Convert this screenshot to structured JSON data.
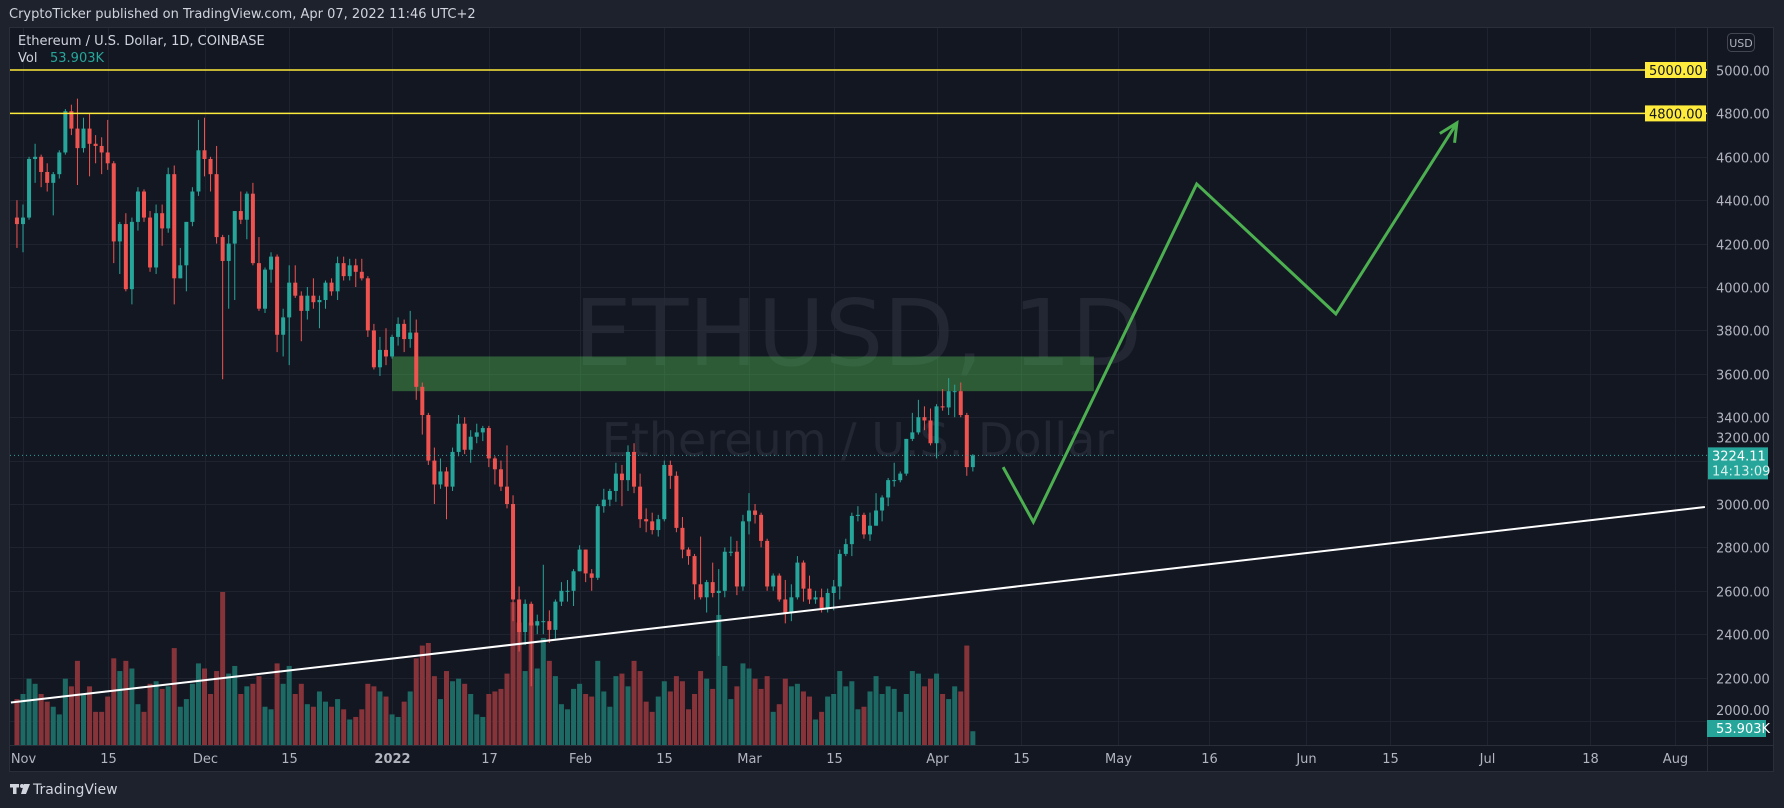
{
  "header": {
    "published": "CryptoTicker published on TradingView.com, Apr 07, 2022 11:46 UTC+2"
  },
  "legend": {
    "symbol": "Ethereum / U.S. Dollar, 1D, COINBASE",
    "vol_label": "Vol",
    "vol_value": "53.903K"
  },
  "watermark": {
    "ticker": "ETHUSD, 1D",
    "name": "Ethereum / U.S. Dollar"
  },
  "currency_button": "USD",
  "footer": {
    "brand": "TradingView"
  },
  "colors": {
    "up": "#26a69a",
    "down": "#ef5350",
    "vol_up": "#1d6a65",
    "vol_down": "#86343a",
    "level": "#ffeb3b",
    "zone": "#4caf50",
    "path": "#4caf50",
    "trend": "#ffffff"
  },
  "chart_data": {
    "type": "candlestick",
    "title": "Ethereum / U.S. Dollar, 1D, COINBASE",
    "ylim": [
      1980,
      5100
    ],
    "y_ticks": [
      5000,
      4800,
      4600,
      4400,
      4200,
      4000,
      3800,
      3600,
      3400,
      3200,
      3000,
      2800,
      2600,
      2400,
      2200,
      2000
    ],
    "y_tick_labels": [
      "5000.00",
      "4800.00",
      "4600.00",
      "4400.00",
      "4200.00",
      "4000.00",
      "3800.00",
      "3600.00",
      "3400.00",
      "3200.00",
      "3000.00",
      "2800.00",
      "2600.00",
      "2400.00",
      "2200.00",
      "2000.00"
    ],
    "x_ticks": [
      {
        "date": "2021-11-01",
        "label": "Nov"
      },
      {
        "date": "2021-11-15",
        "label": "15"
      },
      {
        "date": "2021-12-01",
        "label": "Dec"
      },
      {
        "date": "2021-12-15",
        "label": "15"
      },
      {
        "date": "2022-01-01",
        "label": "2022",
        "bold": true
      },
      {
        "date": "2022-01-17",
        "label": "17"
      },
      {
        "date": "2022-02-01",
        "label": "Feb"
      },
      {
        "date": "2022-02-15",
        "label": "15"
      },
      {
        "date": "2022-03-01",
        "label": "Mar"
      },
      {
        "date": "2022-03-15",
        "label": "15"
      },
      {
        "date": "2022-04-01",
        "label": "Apr"
      },
      {
        "date": "2022-04-15",
        "label": "15"
      },
      {
        "date": "2022-05-01",
        "label": "May"
      },
      {
        "date": "2022-05-16",
        "label": "16"
      },
      {
        "date": "2022-06-01",
        "label": "Jun"
      },
      {
        "date": "2022-06-15",
        "label": "15"
      },
      {
        "date": "2022-07-01",
        "label": "Jul"
      },
      {
        "date": "2022-07-18",
        "label": "18"
      },
      {
        "date": "2022-08-01",
        "label": "Aug"
      }
    ],
    "first_date": "2021-10-31",
    "candle_fields": [
      "open",
      "high",
      "low",
      "close",
      "volume_k"
    ],
    "candles": [
      [
        4320,
        4400,
        4180,
        4290,
        180
      ],
      [
        4290,
        4380,
        4160,
        4320,
        200
      ],
      [
        4320,
        4600,
        4310,
        4590,
        260
      ],
      [
        4590,
        4660,
        4480,
        4600,
        240
      ],
      [
        4600,
        4610,
        4460,
        4530,
        200
      ],
      [
        4530,
        4570,
        4440,
        4480,
        170
      ],
      [
        4480,
        4530,
        4330,
        4520,
        150
      ],
      [
        4520,
        4630,
        4500,
        4620,
        120
      ],
      [
        4620,
        4820,
        4610,
        4810,
        260
      ],
      [
        4810,
        4840,
        4700,
        4730,
        230
      ],
      [
        4730,
        4868,
        4470,
        4640,
        330
      ],
      [
        4640,
        4780,
        4620,
        4730,
        200
      ],
      [
        4730,
        4800,
        4510,
        4660,
        230
      ],
      [
        4660,
        4700,
        4570,
        4650,
        130
      ],
      [
        4650,
        4690,
        4520,
        4620,
        130
      ],
      [
        4620,
        4770,
        4540,
        4570,
        190
      ],
      [
        4570,
        4580,
        4110,
        4210,
        340
      ],
      [
        4210,
        4300,
        4060,
        4290,
        290
      ],
      [
        4290,
        4340,
        3980,
        3990,
        330
      ],
      [
        3990,
        4320,
        3920,
        4300,
        300
      ],
      [
        4300,
        4460,
        4260,
        4440,
        160
      ],
      [
        4440,
        4450,
        4300,
        4320,
        130
      ],
      [
        4320,
        4350,
        4070,
        4090,
        240
      ],
      [
        4090,
        4380,
        4060,
        4340,
        250
      ],
      [
        4340,
        4380,
        4190,
        4270,
        220
      ],
      [
        4270,
        4550,
        4250,
        4520,
        230
      ],
      [
        4520,
        4560,
        3920,
        4040,
        380
      ],
      [
        4040,
        4180,
        4040,
        4100,
        150
      ],
      [
        4100,
        4300,
        3980,
        4300,
        180
      ],
      [
        4300,
        4460,
        4280,
        4440,
        240
      ],
      [
        4440,
        4770,
        4420,
        4630,
        320
      ],
      [
        4630,
        4780,
        4510,
        4590,
        300
      ],
      [
        4590,
        4600,
        4440,
        4520,
        200
      ],
      [
        4520,
        4650,
        4200,
        4230,
        290
      ],
      [
        4230,
        4240,
        3575,
        4120,
        600
      ],
      [
        4120,
        4240,
        3900,
        4200,
        280
      ],
      [
        4200,
        4350,
        3940,
        4350,
        310
      ],
      [
        4350,
        4440,
        4290,
        4310,
        200
      ],
      [
        4310,
        4440,
        4220,
        4430,
        230
      ],
      [
        4430,
        4480,
        4100,
        4110,
        240
      ],
      [
        4110,
        4230,
        3890,
        3900,
        270
      ],
      [
        3900,
        4090,
        3880,
        4080,
        150
      ],
      [
        4080,
        4160,
        4020,
        4140,
        140
      ],
      [
        4140,
        4150,
        3700,
        3780,
        320
      ],
      [
        3780,
        3900,
        3680,
        3860,
        240
      ],
      [
        3860,
        4100,
        3640,
        4020,
        310
      ],
      [
        4020,
        4100,
        3950,
        3960,
        200
      ],
      [
        3960,
        3980,
        3750,
        3890,
        240
      ],
      [
        3890,
        4000,
        3850,
        3960,
        160
      ],
      [
        3960,
        4040,
        3900,
        3930,
        150
      ],
      [
        3930,
        3960,
        3810,
        3940,
        210
      ],
      [
        3940,
        4030,
        3900,
        4020,
        170
      ],
      [
        4020,
        4040,
        3960,
        3980,
        150
      ],
      [
        3980,
        4140,
        3940,
        4110,
        180
      ],
      [
        4110,
        4140,
        4030,
        4050,
        140
      ],
      [
        4050,
        4130,
        4030,
        4100,
        100
      ],
      [
        4100,
        4130,
        4000,
        4070,
        110
      ],
      [
        4070,
        4130,
        4030,
        4040,
        140
      ],
      [
        4040,
        4050,
        3770,
        3800,
        240
      ],
      [
        3800,
        3830,
        3620,
        3630,
        230
      ],
      [
        3630,
        3770,
        3590,
        3710,
        210
      ],
      [
        3710,
        3810,
        3640,
        3680,
        190
      ],
      [
        3680,
        3780,
        3670,
        3770,
        120
      ],
      [
        3770,
        3860,
        3730,
        3830,
        110
      ],
      [
        3830,
        3850,
        3700,
        3760,
        170
      ],
      [
        3760,
        3890,
        3720,
        3790,
        210
      ],
      [
        3790,
        3850,
        3480,
        3540,
        340
      ],
      [
        3540,
        3560,
        3320,
        3410,
        390
      ],
      [
        3410,
        3420,
        3180,
        3200,
        400
      ],
      [
        3200,
        3260,
        3000,
        3090,
        270
      ],
      [
        3090,
        3210,
        3070,
        3150,
        180
      ],
      [
        3150,
        3170,
        2930,
        3080,
        290
      ],
      [
        3080,
        3260,
        3060,
        3240,
        250
      ],
      [
        3240,
        3410,
        3220,
        3370,
        260
      ],
      [
        3370,
        3400,
        3230,
        3250,
        240
      ],
      [
        3250,
        3340,
        3190,
        3310,
        200
      ],
      [
        3310,
        3370,
        3280,
        3330,
        120
      ],
      [
        3330,
        3360,
        3290,
        3350,
        110
      ],
      [
        3350,
        3360,
        3170,
        3210,
        200
      ],
      [
        3210,
        3220,
        3090,
        3160,
        210
      ],
      [
        3160,
        3200,
        3060,
        3080,
        220
      ],
      [
        3080,
        3270,
        2980,
        3000,
        280
      ],
      [
        3000,
        3040,
        2460,
        2560,
        560
      ],
      [
        2560,
        2620,
        2320,
        2410,
        480
      ],
      [
        2410,
        2560,
        2350,
        2540,
        290
      ],
      [
        2540,
        2550,
        2160,
        2440,
        480
      ],
      [
        2440,
        2490,
        2400,
        2460,
        300
      ],
      [
        2460,
        2720,
        2400,
        2460,
        420
      ],
      [
        2460,
        2510,
        2360,
        2420,
        330
      ],
      [
        2420,
        2560,
        2380,
        2550,
        270
      ],
      [
        2550,
        2640,
        2530,
        2600,
        160
      ],
      [
        2600,
        2650,
        2550,
        2600,
        140
      ],
      [
        2600,
        2700,
        2530,
        2690,
        220
      ],
      [
        2690,
        2810,
        2690,
        2790,
        240
      ],
      [
        2790,
        2790,
        2640,
        2680,
        200
      ],
      [
        2680,
        2700,
        2600,
        2660,
        190
      ],
      [
        2660,
        3000,
        2650,
        2990,
        330
      ],
      [
        2990,
        3070,
        2960,
        3020,
        210
      ],
      [
        3020,
        3070,
        2990,
        3060,
        150
      ],
      [
        3060,
        3190,
        3010,
        3140,
        270
      ],
      [
        3140,
        3180,
        2990,
        3110,
        280
      ],
      [
        3110,
        3270,
        3060,
        3240,
        230
      ],
      [
        3240,
        3280,
        3050,
        3080,
        330
      ],
      [
        3080,
        3140,
        2890,
        2930,
        290
      ],
      [
        2930,
        2980,
        2870,
        2920,
        170
      ],
      [
        2920,
        2960,
        2860,
        2880,
        130
      ],
      [
        2880,
        2950,
        2850,
        2930,
        190
      ],
      [
        2930,
        3200,
        2920,
        3180,
        250
      ],
      [
        3180,
        3200,
        3070,
        3130,
        210
      ],
      [
        3130,
        3150,
        2870,
        2890,
        270
      ],
      [
        2890,
        2940,
        2750,
        2790,
        250
      ],
      [
        2790,
        2800,
        2720,
        2760,
        140
      ],
      [
        2760,
        2770,
        2560,
        2630,
        200
      ],
      [
        2630,
        2850,
        2560,
        2570,
        290
      ],
      [
        2570,
        2650,
        2500,
        2640,
        260
      ],
      [
        2640,
        2730,
        2570,
        2590,
        220
      ],
      [
        2590,
        2700,
        2300,
        2600,
        510
      ],
      [
        2600,
        2800,
        2570,
        2780,
        310
      ],
      [
        2780,
        2850,
        2760,
        2780,
        180
      ],
      [
        2780,
        2830,
        2580,
        2620,
        230
      ],
      [
        2620,
        2950,
        2600,
        2920,
        320
      ],
      [
        2920,
        3050,
        2860,
        2970,
        300
      ],
      [
        2970,
        3000,
        2910,
        2950,
        260
      ],
      [
        2950,
        2960,
        2800,
        2830,
        220
      ],
      [
        2830,
        2840,
        2600,
        2620,
        270
      ],
      [
        2620,
        2680,
        2600,
        2670,
        130
      ],
      [
        2670,
        2680,
        2550,
        2560,
        160
      ],
      [
        2560,
        2650,
        2450,
        2500,
        260
      ],
      [
        2500,
        2630,
        2460,
        2570,
        230
      ],
      [
        2570,
        2760,
        2560,
        2730,
        240
      ],
      [
        2730,
        2740,
        2550,
        2610,
        210
      ],
      [
        2610,
        2670,
        2540,
        2560,
        190
      ],
      [
        2560,
        2600,
        2540,
        2570,
        100
      ],
      [
        2570,
        2610,
        2500,
        2520,
        130
      ],
      [
        2520,
        2610,
        2500,
        2590,
        190
      ],
      [
        2590,
        2650,
        2510,
        2620,
        200
      ],
      [
        2620,
        2790,
        2560,
        2770,
        290
      ],
      [
        2770,
        2840,
        2760,
        2815,
        230
      ],
      [
        2815,
        2960,
        2760,
        2945,
        250
      ],
      [
        2945,
        2990,
        2920,
        2950,
        140
      ],
      [
        2950,
        2960,
        2840,
        2860,
        150
      ],
      [
        2860,
        2960,
        2830,
        2900,
        210
      ],
      [
        2900,
        3050,
        2900,
        2970,
        270
      ],
      [
        2970,
        3040,
        2920,
        3030,
        200
      ],
      [
        3030,
        3120,
        2990,
        3110,
        230
      ],
      [
        3110,
        3190,
        3080,
        3110,
        220
      ],
      [
        3110,
        3150,
        3100,
        3140,
        130
      ],
      [
        3140,
        3300,
        3130,
        3300,
        200
      ],
      [
        3300,
        3420,
        3290,
        3330,
        290
      ],
      [
        3330,
        3480,
        3320,
        3400,
        280
      ],
      [
        3400,
        3450,
        3340,
        3385,
        230
      ],
      [
        3385,
        3440,
        3270,
        3280,
        260
      ],
      [
        3280,
        3460,
        3210,
        3450,
        280
      ],
      [
        3450,
        3530,
        3430,
        3445,
        200
      ],
      [
        3445,
        3580,
        3410,
        3520,
        180
      ],
      [
        3520,
        3550,
        3400,
        3520,
        230
      ],
      [
        3520,
        3560,
        3400,
        3410,
        210
      ],
      [
        3410,
        3420,
        3130,
        3170,
        390
      ],
      [
        3170,
        3230,
        3150,
        3224,
        54
      ]
    ],
    "last_price": 3224.11,
    "last_price_label": "3224.11",
    "countdown": "14:13:09",
    "volume_label": "53.903K",
    "horizontal_levels": [
      {
        "price": 5000,
        "label": "5000.00"
      },
      {
        "price": 4800,
        "label": "4800.00"
      }
    ],
    "zone": {
      "from": "2022-01-01",
      "to": "2022-04-27",
      "top": 3680,
      "bottom": 3520
    },
    "trendline": [
      {
        "date": "2021-10-30",
        "price": 2085
      },
      {
        "date": "2022-08-06",
        "price": 2986
      }
    ],
    "projection_path": [
      {
        "date": "2022-04-12",
        "price": 3170
      },
      {
        "date": "2022-04-17",
        "price": 2917
      },
      {
        "date": "2022-05-14",
        "price": 4475
      },
      {
        "date": "2022-06-06",
        "price": 3876
      },
      {
        "date": "2022-06-26",
        "price": 4756
      }
    ]
  }
}
